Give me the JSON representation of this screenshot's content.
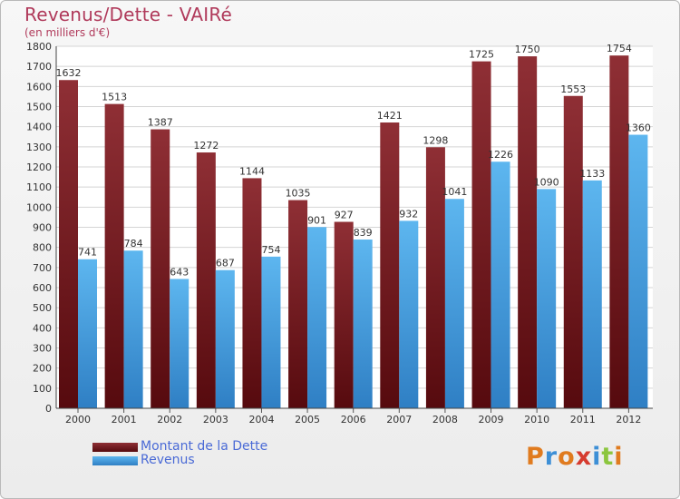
{
  "chart_data": {
    "type": "bar",
    "title": "Revenus/Dette - VAIRé",
    "subtitle": "(en milliers d'€)",
    "categories": [
      "2000",
      "2001",
      "2002",
      "2003",
      "2004",
      "2005",
      "2006",
      "2007",
      "2008",
      "2009",
      "2010",
      "2011",
      "2012"
    ],
    "series": [
      {
        "name": "Montant de la Dette",
        "color": "#7a1f24",
        "values": [
          1632,
          1513,
          1387,
          1272,
          1144,
          1035,
          927,
          1421,
          1298,
          1725,
          1750,
          1553,
          1754
        ]
      },
      {
        "name": "Revenus",
        "color": "#4fa7e6",
        "values": [
          741,
          784,
          643,
          687,
          754,
          901,
          839,
          932,
          1041,
          1226,
          1090,
          1133,
          1360
        ]
      }
    ],
    "ylim": [
      0,
      1800
    ],
    "yticks": [
      0,
      100,
      200,
      300,
      400,
      500,
      600,
      700,
      800,
      900,
      1000,
      1100,
      1200,
      1300,
      1400,
      1500,
      1600,
      1700,
      1800
    ],
    "grid": true,
    "legend": "bottom-left"
  },
  "logo": {
    "text": "Proxiti",
    "colors": [
      "#e07b1f",
      "#3d8fd6",
      "#e07b1f",
      "#d63b2f",
      "#3d8fd6",
      "#8cc63f",
      "#e07b1f"
    ]
  }
}
